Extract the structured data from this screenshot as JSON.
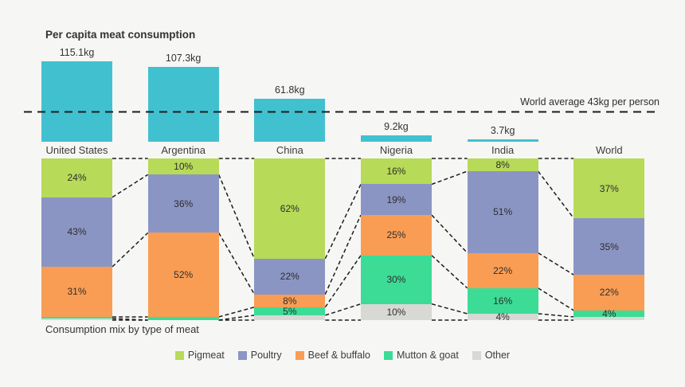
{
  "background": "#f6f6f4",
  "text_color": "#3c3c3c",
  "chart_data": [
    {
      "type": "bar",
      "title": "Per capita meat consumption",
      "categories": [
        "United States",
        "Argentina",
        "China",
        "Nigeria",
        "India",
        "World"
      ],
      "values": [
        115.1,
        107.3,
        61.8,
        9.2,
        3.7,
        null
      ],
      "value_labels": [
        "115.1kg",
        "107.3kg",
        "61.8kg",
        "9.2kg",
        "3.7kg",
        null
      ],
      "unit": "kg",
      "bar_color": "#41c1cf",
      "grid": false,
      "reference_line": {
        "value": 43,
        "label": "World average 43kg per person",
        "style": "dashed"
      }
    },
    {
      "type": "stacked-bar",
      "title": "Consumption mix by type of meat",
      "categories": [
        "United States",
        "Argentina",
        "China",
        "Nigeria",
        "India",
        "World"
      ],
      "unit": "%",
      "legend_position": "bottom",
      "label_min_value": 4,
      "series": [
        {
          "name": "Pigmeat",
          "color": "#b7da58",
          "values": [
            24,
            10,
            62,
            16,
            8,
            37
          ]
        },
        {
          "name": "Poultry",
          "color": "#8b95c4",
          "values": [
            43,
            36,
            22,
            19,
            51,
            35
          ]
        },
        {
          "name": "Beef & buffalo",
          "color": "#f99d54",
          "values": [
            31,
            52,
            8,
            25,
            22,
            22
          ]
        },
        {
          "name": "Mutton & goat",
          "color": "#3cdc96",
          "values": [
            1,
            2,
            5,
            30,
            16,
            4
          ]
        },
        {
          "name": "Other",
          "color": "#d8d8d5",
          "values": [
            1,
            0,
            3,
            10,
            4,
            2
          ]
        }
      ]
    }
  ]
}
